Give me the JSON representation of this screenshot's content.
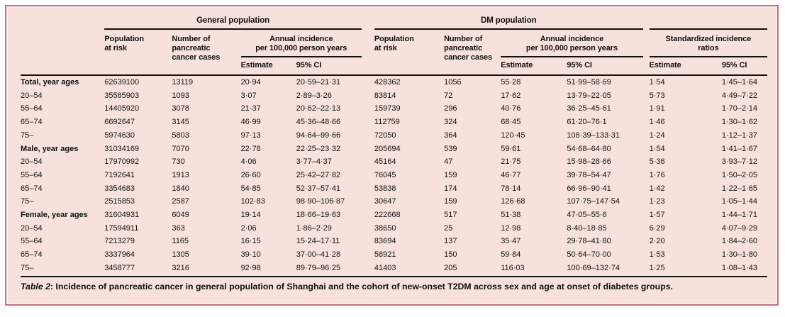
{
  "card": {
    "background": "#f6e1dd",
    "border_color": "#c8707f",
    "rule_color": "#111111"
  },
  "header": {
    "group_general": "General population",
    "group_dm": "DM population",
    "col_population": "Population\nat risk",
    "col_cases": "Number of\npancreatic\ncancer cases",
    "col_annual": "Annual incidence\nper 100,000 person years",
    "col_sir": "Standardized incidence\nratios",
    "col_estimate": "Estimate",
    "col_ci": "95% CI"
  },
  "rows": [
    {
      "label": "Total, year ages",
      "bold": true,
      "values": [
        "62639100",
        "13119",
        "20·94",
        "20·59–21·31",
        "428362",
        "1056",
        "55·28",
        "51·99–58·69",
        "1·54",
        "1·45–1·64"
      ]
    },
    {
      "label": "20–54",
      "bold": false,
      "values": [
        "35565903",
        "1093",
        "3·07",
        "2·89–3·26",
        "83814",
        "72",
        "17·62",
        "13·79–22·05",
        "5·73",
        "4·49–7·22"
      ]
    },
    {
      "label": "55–64",
      "bold": false,
      "values": [
        "14405920",
        "3078",
        "21·37",
        "20·62–22·13",
        "159739",
        "296",
        "40·76",
        "36·25–45·61",
        "1·91",
        "1·70–2·14"
      ]
    },
    {
      "label": "65–74",
      "bold": false,
      "values": [
        "6692647",
        "3145",
        "46·99",
        "45·36–48·66",
        "112759",
        "324",
        "68·45",
        "61·20–76·1",
        "1·46",
        "1·30–1·62"
      ]
    },
    {
      "label": "75–",
      "bold": false,
      "values": [
        "5974630",
        "5803",
        "97·13",
        "94·64–99·66",
        "72050",
        "364",
        "120·45",
        "108·39–133·31",
        "1·24",
        "1·12–1·37"
      ]
    },
    {
      "label": "Male, year ages",
      "bold": true,
      "values": [
        "31034169",
        "7070",
        "22·78",
        "22·25–23·32",
        "205694",
        "539",
        "59·61",
        "54·68–64·80",
        "1·54",
        "1·41–1·67"
      ]
    },
    {
      "label": "20–54",
      "bold": false,
      "values": [
        "17970992",
        "730",
        "4·06",
        "3·77–4·37",
        "45164",
        "47",
        "21·75",
        "15·98–28·66",
        "5·36",
        "3·93–7·12"
      ]
    },
    {
      "label": "55–64",
      "bold": false,
      "values": [
        "7192641",
        "1913",
        "26·60",
        "25·42–27·82",
        "76045",
        "159",
        "46·77",
        "39·78–54·47",
        "1·76",
        "1·50–2·05"
      ]
    },
    {
      "label": "65–74",
      "bold": false,
      "values": [
        "3354683",
        "1840",
        "54·85",
        "52·37–57·41",
        "53838",
        "174",
        "78·14",
        "66·96–90·41",
        "1·42",
        "1·22–1·65"
      ]
    },
    {
      "label": "75–",
      "bold": false,
      "values": [
        "2515853",
        "2587",
        "102·83",
        "98·90–106·87",
        "30647",
        "159",
        "126·68",
        "107·75–147·54",
        "1·23",
        "1·05–1·44"
      ]
    },
    {
      "label": "Female, year ages",
      "bold": true,
      "values": [
        "31604931",
        "6049",
        "19·14",
        "18·66–19·63",
        "222668",
        "517",
        "51·38",
        "47·05–55·6",
        "1·57",
        "1·44–1·71"
      ]
    },
    {
      "label": "20–54",
      "bold": false,
      "values": [
        "17594911",
        "363",
        "2·06",
        "1·86–2·29",
        "38650",
        "25",
        "12·98",
        "8·40–18·85",
        "6·29",
        "4·07–9·29"
      ]
    },
    {
      "label": "55–64",
      "bold": false,
      "values": [
        "7213279",
        "1165",
        "16·15",
        "15·24–17·11",
        "83694",
        "137",
        "35·47",
        "29·78–41·80",
        "2·20",
        "1·84–2·60"
      ]
    },
    {
      "label": "65–74",
      "bold": false,
      "values": [
        "3337964",
        "1305",
        "39·10",
        "37·00–41·28",
        "58921",
        "150",
        "59·84",
        "50·64–70·00",
        "1·53",
        "1·30–1·80"
      ]
    },
    {
      "label": "75–",
      "bold": false,
      "values": [
        "3458777",
        "3216",
        "92·98",
        "89·79–96·25",
        "41403",
        "205",
        "116·03",
        "100·69–132·74",
        "1·25",
        "1·08–1·43"
      ]
    }
  ],
  "caption": {
    "label": "Table 2",
    "text": ": Incidence of pancreatic cancer in general population of Shanghai and the cohort of new-onset T2DM across sex and age at onset of diabetes groups."
  }
}
